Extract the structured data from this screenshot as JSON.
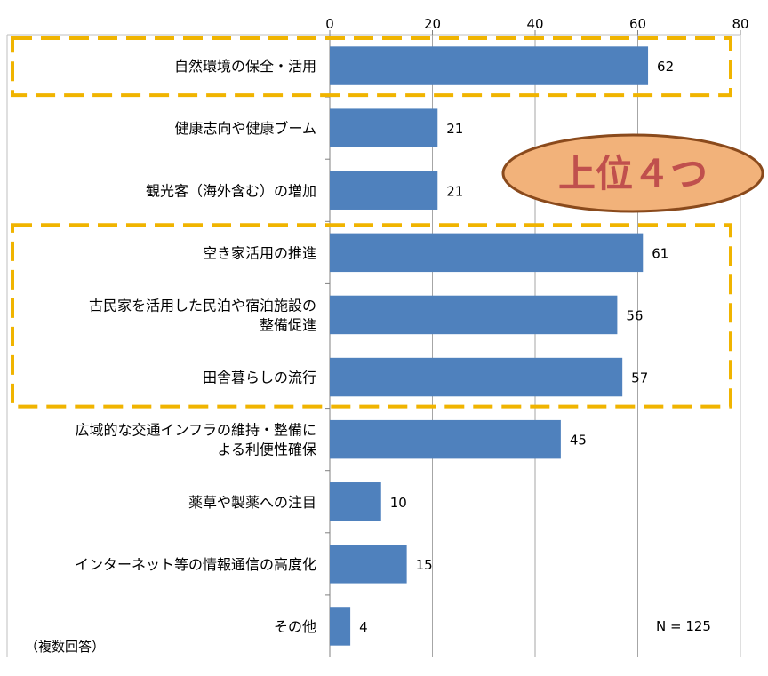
{
  "chart_data": {
    "type": "bar",
    "orientation": "horizontal",
    "categories": [
      [
        "自然環境の保全・活用"
      ],
      [
        "健康志向や健康ブーム"
      ],
      [
        "観光客（海外含む）の増加"
      ],
      [
        "空き家活用の推進"
      ],
      [
        "古民家を活用した民泊や宿泊施設の",
        "整備促進"
      ],
      [
        "田舎暮らしの流行"
      ],
      [
        "広域的な交通インフラの維持・整備に",
        "よる利便性確保"
      ],
      [
        "薬草や製薬への注目"
      ],
      [
        "インターネット等の情報通信の高度化"
      ],
      [
        "その他"
      ]
    ],
    "values": [
      62,
      21,
      21,
      61,
      56,
      57,
      45,
      10,
      15,
      4
    ],
    "xlim": [
      0,
      80
    ],
    "xticks": [
      0,
      20,
      40,
      60,
      80
    ],
    "xaxis_position": "top",
    "grid": true,
    "bar_color": "#4f81bd",
    "highlight_color": "#f0b400",
    "highlight_groups": [
      [
        0
      ],
      [
        3,
        4,
        5
      ]
    ]
  },
  "annotations": {
    "callout": "上位４つ",
    "callout_fill": "#f2b27a",
    "callout_text_color": "#c0504d",
    "sample_size": "N = 125",
    "multiple_answers": "（複数回答）"
  }
}
